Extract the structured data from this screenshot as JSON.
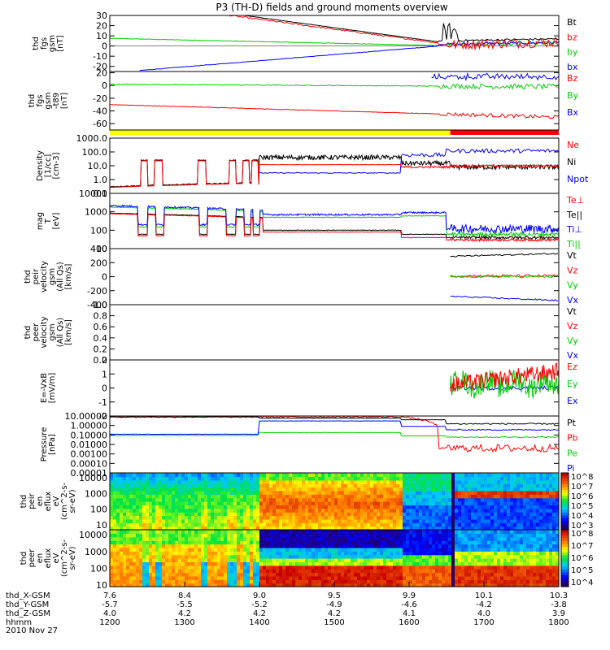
{
  "title": "P3 (TH-D) fields and ground moments overview",
  "colors": {
    "black": "#000000",
    "red": "#ff0000",
    "green": "#00cc00",
    "blue": "#0000ff",
    "yellow": "#ffff00"
  },
  "chart_data": [
    {
      "type": "line",
      "id": "p1",
      "ylabel": [
        "thd",
        "fgs",
        "gsm",
        "[nT]"
      ],
      "yticks": [
        "30",
        "20",
        "10",
        "0",
        "-10",
        "-20"
      ],
      "ylim": [
        -25,
        30
      ],
      "legend": [
        "Bt",
        "bz",
        "by",
        "bx"
      ],
      "legend_colors": [
        "black",
        "red",
        "green",
        "blue"
      ]
    },
    {
      "type": "line",
      "id": "p2",
      "ylabel": [
        "thd",
        "fgs",
        "gsm",
        "-t89",
        "[nT]"
      ],
      "yticks": [
        "20",
        "0",
        "-20",
        "-40",
        "-60"
      ],
      "ylim": [
        -70,
        22
      ],
      "legend": [
        "Bz",
        "By",
        "Bx"
      ],
      "legend_colors": [
        "red",
        "green",
        "blue"
      ]
    },
    {
      "type": "line",
      "id": "p3",
      "ylabel": [
        "Density",
        "[1/cc]",
        "[cm-3]"
      ],
      "yticks": [
        "1000.0",
        "100.0",
        "10.0",
        "1.0",
        "0.1"
      ],
      "ylim": [
        0.1,
        1000
      ],
      "log": true,
      "legend": [
        "Ne",
        "Ni",
        "Npot"
      ],
      "legend_colors": [
        "red",
        "black",
        "blue"
      ]
    },
    {
      "type": "line",
      "id": "p4",
      "ylabel": [
        "mag",
        "T",
        "[eV]"
      ],
      "yticks": [
        "10000",
        "1000",
        "100",
        "10"
      ],
      "ylim": [
        10,
        10000
      ],
      "log": true,
      "legend": [
        "Te⊥",
        "Te||",
        "Ti⊥",
        "Ti||"
      ],
      "legend_colors": [
        "red",
        "black",
        "blue",
        "green"
      ]
    },
    {
      "type": "line",
      "id": "p5",
      "ylabel": [
        "thd",
        "peir",
        "velocity",
        "gsm",
        "(All Qs)",
        "[km/s]"
      ],
      "yticks": [
        "400",
        "200",
        "0",
        "-200",
        "-400"
      ],
      "ylim": [
        -400,
        400
      ],
      "legend": [
        "Vt",
        "Vz",
        "Vy",
        "Vx"
      ],
      "legend_colors": [
        "black",
        "red",
        "green",
        "blue"
      ]
    },
    {
      "type": "line",
      "id": "p6",
      "ylabel": [
        "thd",
        "peer",
        "velocity",
        "gsm",
        "(All Qs)",
        "[km/s]"
      ],
      "yticks": [
        "1.0",
        "0.8",
        "0.6",
        "0.4",
        "0.2",
        "0.0"
      ],
      "ylim": [
        0,
        1
      ],
      "legend": [
        "Vt",
        "Vz",
        "Vy",
        "Vx"
      ],
      "legend_colors": [
        "black",
        "red",
        "green",
        "blue"
      ]
    },
    {
      "type": "line",
      "id": "p7",
      "ylabel": [
        "E=-VxB",
        "[mV/m]"
      ],
      "yticks": [
        "2",
        "1",
        "0",
        "-1",
        "-2"
      ],
      "ylim": [
        -2,
        2
      ],
      "legend": [
        "Ez",
        "Ey",
        "Ex"
      ],
      "legend_colors": [
        "red",
        "green",
        "blue"
      ]
    },
    {
      "type": "line",
      "id": "p8",
      "ylabel": [
        "Pressure",
        "[nPa]"
      ],
      "yticks": [
        "10.00000",
        "1.00000",
        "0.10000",
        "0.01000",
        "0.00100",
        "0.00010",
        "0.00001"
      ],
      "ylim": [
        1e-05,
        10
      ],
      "log": true,
      "legend": [
        "Pt",
        "Pb",
        "Pe",
        "Pi"
      ],
      "legend_colors": [
        "black",
        "red",
        "green",
        "blue"
      ]
    },
    {
      "type": "heatmap",
      "id": "p9",
      "ylabel": [
        "thd",
        "peir",
        "en",
        "eflux",
        "eV",
        "(cm^2-s-",
        "sr-eV)"
      ],
      "yticks": [
        "10000",
        "1000",
        "100",
        "10"
      ],
      "ylim": [
        5,
        20000
      ],
      "log": true,
      "cbar": [
        "10^8",
        "10^7",
        "10^6",
        "10^5",
        "10^4",
        "10^3"
      ]
    },
    {
      "type": "heatmap",
      "id": "p10",
      "ylabel": [
        "thd",
        "peer",
        "en",
        "eflux",
        "eV",
        "(cm^2-s-",
        "sr-eV)"
      ],
      "yticks": [
        "10000",
        "1000",
        "100",
        "10"
      ],
      "ylim": [
        8,
        20000
      ],
      "log": true,
      "cbar": [
        "10^8",
        "10^7",
        "10^6",
        "10^5",
        "10^4"
      ]
    }
  ],
  "xaxis": {
    "row_labels": [
      "thd_X-GSM",
      "thd_Y-GSM",
      "thd_Z-GSM",
      "hhmm",
      "2010 Nov 27"
    ],
    "xlim": [
      1200,
      1800
    ],
    "ticks": [
      {
        "x": "7.6",
        "y": "-5.7",
        "z": "4.0",
        "t": "1200"
      },
      {
        "x": "8.4",
        "y": "-5.5",
        "z": "4.2",
        "t": "1300"
      },
      {
        "x": "9.0",
        "y": "-5.2",
        "z": "4.2",
        "t": "1400"
      },
      {
        "x": "9.5",
        "y": "-4.9",
        "z": "4.2",
        "t": "1500"
      },
      {
        "x": "9.9",
        "y": "-4.6",
        "z": "4.1",
        "t": "1600"
      },
      {
        "x": "10.1",
        "y": "-4.2",
        "z": "4.0",
        "t": "1700"
      },
      {
        "x": "10.3",
        "y": "-3.8",
        "z": "3.9",
        "t": "1800"
      }
    ]
  }
}
